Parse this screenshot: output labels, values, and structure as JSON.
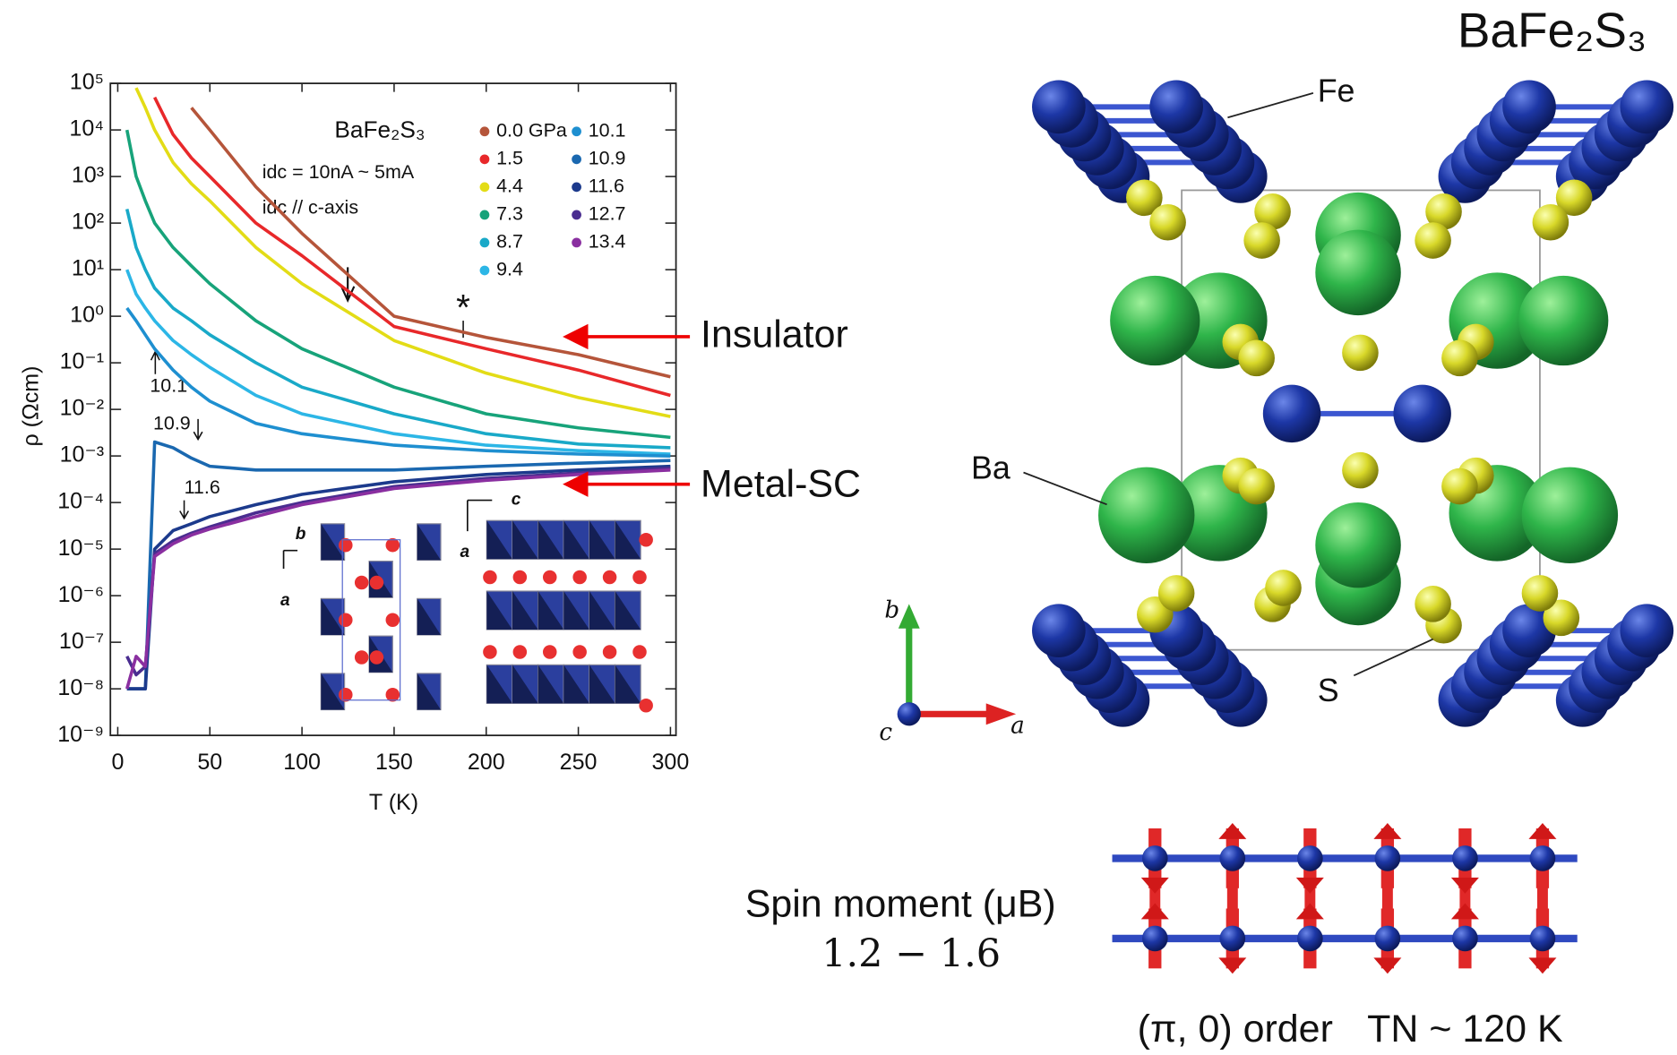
{
  "chart_data": {
    "type": "line",
    "title": "BaFe₂S₃",
    "conditions": [
      "idc = 10nA ~ 5mA",
      "idc // c-axis"
    ],
    "x_label": "T (K)",
    "y_label": "ρ (Ωcm)",
    "x": [
      5,
      10,
      15,
      20,
      30,
      40,
      50,
      75,
      100,
      150,
      200,
      250,
      300
    ],
    "xlim": [
      -4,
      303
    ],
    "xticks": [
      0,
      50,
      100,
      150,
      200,
      250,
      300
    ],
    "ylim": [
      1e-09,
      100000
    ],
    "log_y": true,
    "yticks": [
      {
        "value": 100000,
        "label": "10⁵"
      },
      {
        "value": 10000,
        "label": "10⁴"
      },
      {
        "value": 1000,
        "label": "10³"
      },
      {
        "value": 100,
        "label": "10²"
      },
      {
        "value": 10,
        "label": "10¹"
      },
      {
        "value": 1,
        "label": "10⁰"
      },
      {
        "value": 0.1,
        "label": "10⁻¹"
      },
      {
        "value": 0.01,
        "label": "10⁻²"
      },
      {
        "value": 0.001,
        "label": "10⁻³"
      },
      {
        "value": 0.0001,
        "label": "10⁻⁴"
      },
      {
        "value": 1e-05,
        "label": "10⁻⁵"
      },
      {
        "value": 1e-06,
        "label": "10⁻⁶"
      },
      {
        "value": 1e-07,
        "label": "10⁻⁷"
      },
      {
        "value": 1e-08,
        "label": "10⁻⁸"
      },
      {
        "value": 1e-09,
        "label": "10⁻⁹"
      }
    ],
    "series": [
      {
        "name": "0.0 GPa",
        "color": "#b5553a",
        "values": [
          null,
          null,
          null,
          null,
          null,
          30000,
          10000,
          600,
          60,
          1.0,
          0.35,
          0.15,
          0.05
        ]
      },
      {
        "name": "1.5",
        "color": "#e8282a",
        "values": [
          null,
          null,
          null,
          50000,
          8000,
          2500,
          1000,
          100,
          20,
          0.6,
          0.2,
          0.07,
          0.02
        ]
      },
      {
        "name": "4.4",
        "color": "#e3dc16",
        "values": [
          null,
          80000,
          30000,
          10000,
          2000,
          700,
          300,
          30,
          5,
          0.3,
          0.06,
          0.018,
          0.007
        ]
      },
      {
        "name": "7.3",
        "color": "#17a37a",
        "values": [
          10000,
          1000,
          300,
          100,
          30,
          12,
          5,
          0.8,
          0.2,
          0.03,
          0.008,
          0.004,
          0.0025
        ]
      },
      {
        "name": "8.7",
        "color": "#19a9c8",
        "values": [
          200,
          30,
          10,
          4,
          1.5,
          0.8,
          0.4,
          0.1,
          0.03,
          0.008,
          0.003,
          0.0018,
          0.0015
        ]
      },
      {
        "name": "9.4",
        "color": "#2cb6e6",
        "values": [
          10,
          3,
          1.5,
          0.8,
          0.3,
          0.15,
          0.08,
          0.02,
          0.008,
          0.003,
          0.0017,
          0.0013,
          0.0011
        ]
      },
      {
        "name": "10.1",
        "color": "#1e8fd0",
        "values": [
          1.5,
          0.8,
          0.4,
          0.2,
          0.07,
          0.03,
          0.015,
          0.005,
          0.003,
          0.0017,
          0.0013,
          0.0011,
          0.001
        ]
      },
      {
        "name": "10.9",
        "color": "#1a68b0",
        "values": [
          1e-08,
          1e-08,
          1e-08,
          0.002,
          0.0015,
          0.0009,
          0.0006,
          0.0005,
          0.0005,
          0.0005,
          0.0006,
          0.0007,
          0.0008
        ]
      },
      {
        "name": "11.6",
        "color": "#1c3a8c",
        "values": [
          1e-08,
          1e-08,
          1e-08,
          1e-05,
          2.5e-05,
          3.5e-05,
          5e-05,
          9e-05,
          0.00015,
          0.00028,
          0.0004,
          0.0005,
          0.0006
        ]
      },
      {
        "name": "12.7",
        "color": "#4a2d90",
        "values": [
          5e-08,
          2e-08,
          3e-08,
          8e-06,
          1.5e-05,
          2.2e-05,
          3e-05,
          6e-05,
          0.0001,
          0.00022,
          0.00033,
          0.00043,
          0.00055
        ]
      },
      {
        "name": "13.4",
        "color": "#8a2fa0",
        "values": [
          1e-08,
          5e-08,
          3e-08,
          7e-06,
          1.3e-05,
          2e-05,
          2.7e-05,
          5e-05,
          9e-05,
          0.0002,
          0.0003,
          0.0004,
          0.0005
        ]
      }
    ],
    "annotations": [
      "10.1",
      "10.9",
      "11.6",
      "*"
    ],
    "inset_labels": [
      "b",
      "a",
      "c",
      "a"
    ]
  },
  "phase_labels": [
    "Insulator",
    "Metal-SC"
  ],
  "structure": {
    "title": "BaFe₂S₃",
    "atoms": [
      "Fe",
      "Ba",
      "S"
    ],
    "axes": [
      "b",
      "c",
      "a"
    ]
  },
  "spin": {
    "label": "Spin moment (μB)",
    "range": "1.2 − 1.6",
    "order": "(π, 0) order",
    "neel": "TN ~ 120 K"
  }
}
